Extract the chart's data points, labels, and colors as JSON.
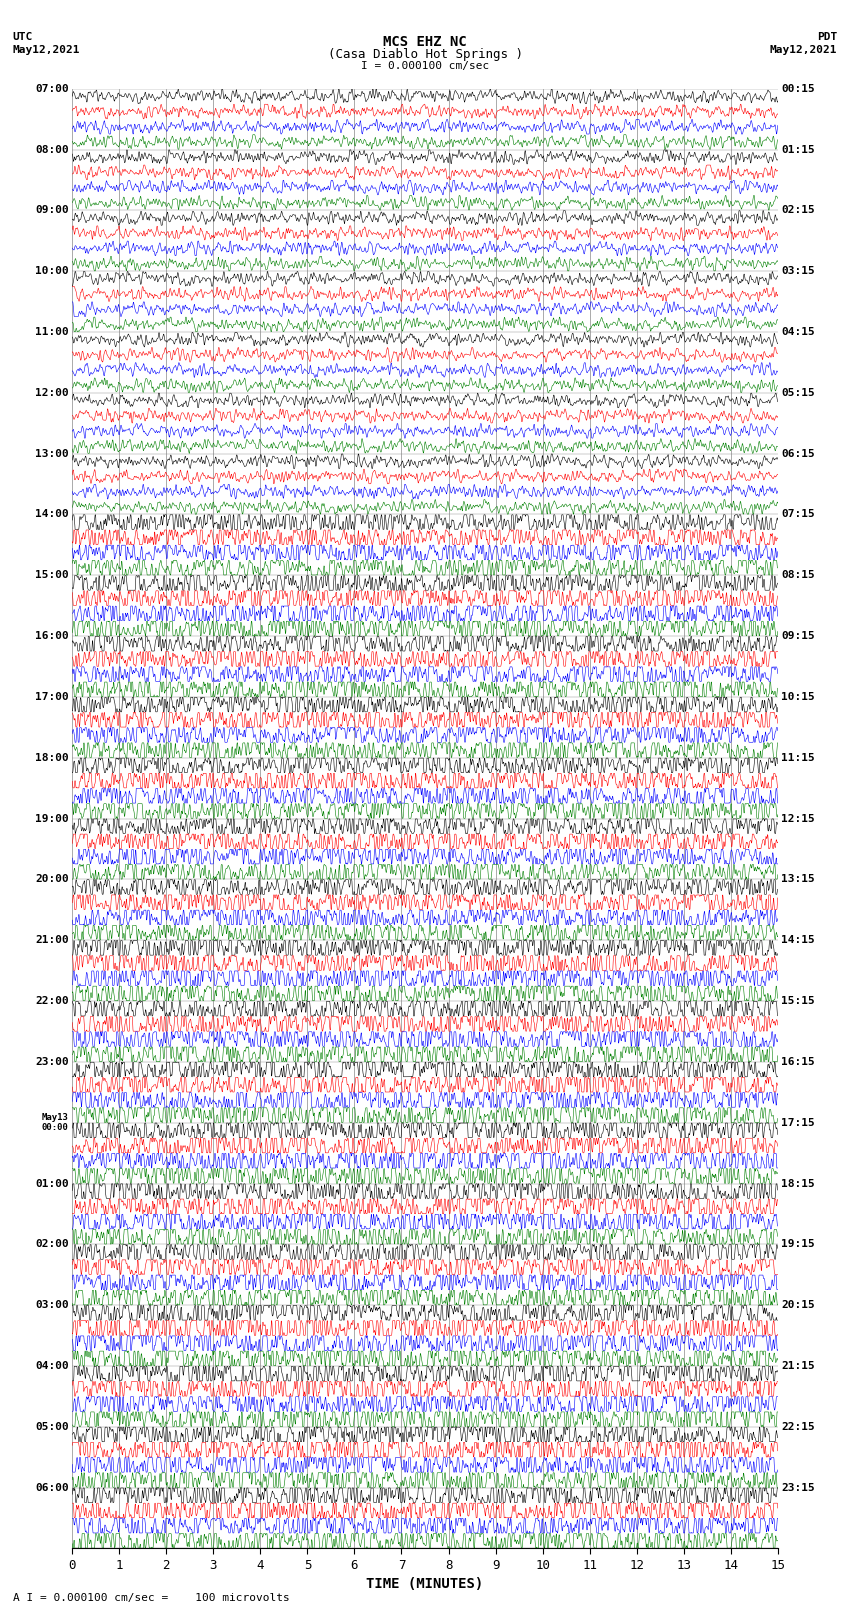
{
  "title_line1": "MCS EHZ NC",
  "title_line2": "(Casa Diablo Hot Springs )",
  "scale_label": "I = 0.000100 cm/sec",
  "footer_label": "A I = 0.000100 cm/sec =    100 microvolts",
  "xlabel": "TIME (MINUTES)",
  "left_times": [
    "07:00",
    "08:00",
    "09:00",
    "10:00",
    "11:00",
    "12:00",
    "13:00",
    "14:00",
    "15:00",
    "16:00",
    "17:00",
    "18:00",
    "19:00",
    "20:00",
    "21:00",
    "22:00",
    "23:00",
    "May13\n00:00",
    "01:00",
    "02:00",
    "03:00",
    "04:00",
    "05:00",
    "06:00"
  ],
  "right_times": [
    "00:15",
    "01:15",
    "02:15",
    "03:15",
    "04:15",
    "05:15",
    "06:15",
    "07:15",
    "08:15",
    "09:15",
    "10:15",
    "11:15",
    "12:15",
    "13:15",
    "14:15",
    "15:15",
    "16:15",
    "17:15",
    "18:15",
    "19:15",
    "20:15",
    "21:15",
    "22:15",
    "23:15"
  ],
  "n_rows": 24,
  "traces_per_row": 4,
  "colors": [
    "black",
    "red",
    "blue",
    "green"
  ],
  "bg_color": "white",
  "grid_color": "#888888",
  "fig_width": 8.5,
  "fig_height": 16.13,
  "dpi": 100,
  "x_min": 0,
  "x_max": 15,
  "x_ticks": [
    0,
    1,
    2,
    3,
    4,
    5,
    6,
    7,
    8,
    9,
    10,
    11,
    12,
    13,
    14,
    15
  ]
}
